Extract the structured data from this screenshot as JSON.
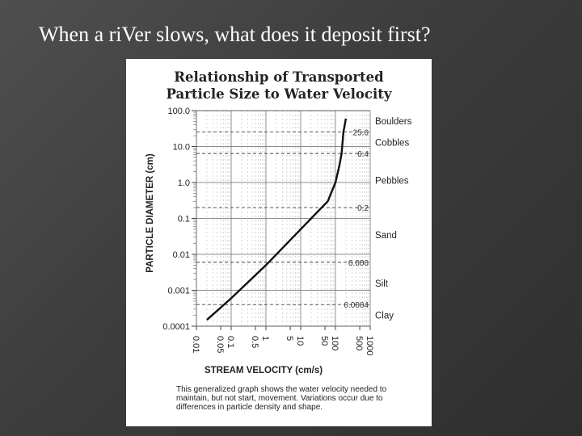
{
  "slide": {
    "title": "When a riVer slows, what does it deposit first?"
  },
  "chart_data": {
    "type": "line",
    "title_lines": [
      "Relationship of Transported",
      "Particle Size to Water Velocity"
    ],
    "xlabel": "STREAM VELOCITY (cm/s)",
    "ylabel": "PARTICLE DIAMETER (cm)",
    "x_scale": "log",
    "y_scale": "log",
    "xlim": [
      0.01,
      1000
    ],
    "ylim": [
      0.0001,
      100
    ],
    "x_ticks": [
      "0.01",
      "0.05",
      "0.1",
      "0.5",
      "1",
      "5",
      "10",
      "50",
      "100",
      "500",
      "1000"
    ],
    "x_tick_values": [
      0.01,
      0.05,
      0.1,
      0.5,
      1,
      5,
      10,
      50,
      100,
      500,
      1000
    ],
    "y_ticks": [
      "0.0001",
      "0.001",
      "0.01",
      "0.1",
      "1.0",
      "10.0",
      "100.0"
    ],
    "y_tick_values": [
      0.0001,
      0.001,
      0.01,
      0.1,
      1,
      10,
      100
    ],
    "boundaries": [
      {
        "label": "25.6",
        "value": 25.6
      },
      {
        "label": "6.4",
        "value": 6.4
      },
      {
        "label": "0.2",
        "value": 0.2
      },
      {
        "label": "0.006",
        "value": 0.006
      },
      {
        "label": "0.0004",
        "value": 0.0004
      }
    ],
    "classes": [
      "Boulders",
      "Cobbles",
      "Pebbles",
      "Sand",
      "Silt",
      "Clay"
    ],
    "series": [
      {
        "x": [
          0.02,
          0.1,
          1,
          10,
          60,
          100,
          130,
          150,
          170,
          200
        ],
        "y": [
          0.00015,
          0.0006,
          0.005,
          0.05,
          0.3,
          1,
          3,
          6.4,
          25.6,
          60
        ]
      }
    ],
    "caption": "This generalized graph shows the water velocity needed to maintain, but not start, movement. Variations occur due to differences in particle density and shape."
  }
}
